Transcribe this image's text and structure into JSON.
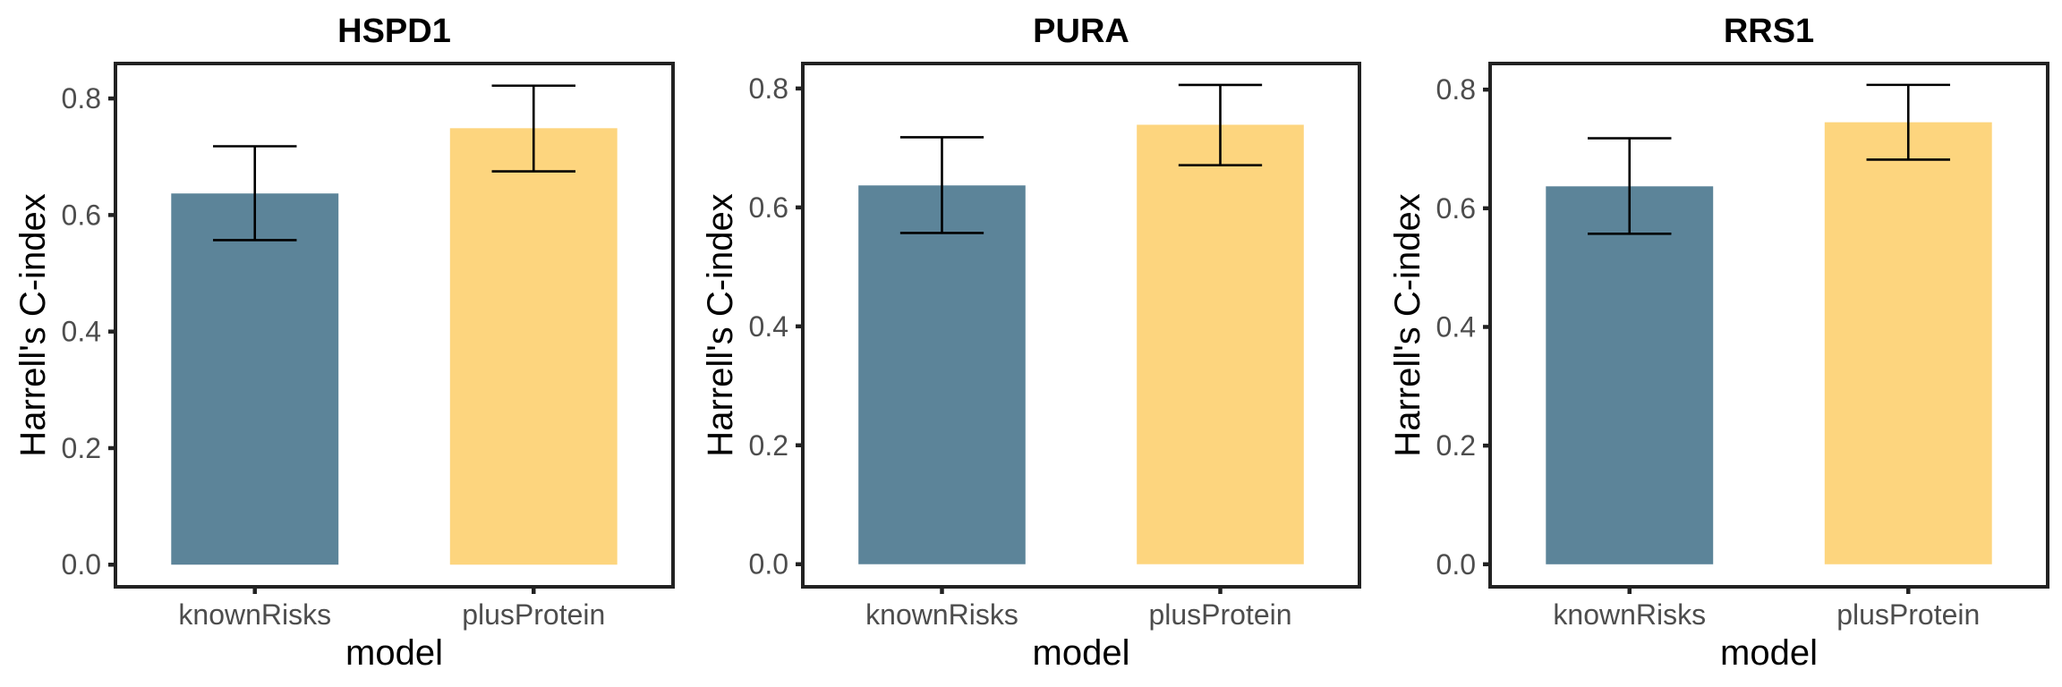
{
  "chart_data": [
    {
      "type": "bar",
      "title": "HSPD1",
      "xlabel": "model",
      "ylabel": "Harrell's C-index",
      "categories": [
        "knownRisks",
        "plusProtein"
      ],
      "values": [
        0.637,
        0.749
      ],
      "error_low": [
        0.557,
        0.675
      ],
      "error_high": [
        0.718,
        0.822
      ],
      "colors": [
        "#5c8499",
        "#fdd57e"
      ],
      "ylim": [
        -0.038,
        0.86
      ],
      "yticks": [
        0.0,
        0.2,
        0.4,
        0.6,
        0.8
      ],
      "ytick_labels": [
        "0.0",
        "0.2",
        "0.4",
        "0.6",
        "0.8"
      ],
      "grid": false,
      "legend": "none"
    },
    {
      "type": "bar",
      "title": "PURA",
      "xlabel": "model",
      "ylabel": "Harrell's C-index",
      "categories": [
        "knownRisks",
        "plusProtein"
      ],
      "values": [
        0.637,
        0.739
      ],
      "error_low": [
        0.557,
        0.671
      ],
      "error_high": [
        0.718,
        0.806
      ],
      "colors": [
        "#5c8499",
        "#fdd57e"
      ],
      "ylim": [
        -0.038,
        0.842
      ],
      "yticks": [
        0.0,
        0.2,
        0.4,
        0.6,
        0.8
      ],
      "ytick_labels": [
        "0.0",
        "0.2",
        "0.4",
        "0.6",
        "0.8"
      ],
      "grid": false,
      "legend": "none"
    },
    {
      "type": "bar",
      "title": "RRS1",
      "xlabel": "model",
      "ylabel": "Harrell's C-index",
      "categories": [
        "knownRisks",
        "plusProtein"
      ],
      "values": [
        0.637,
        0.745
      ],
      "error_low": [
        0.557,
        0.682
      ],
      "error_high": [
        0.718,
        0.808
      ],
      "colors": [
        "#5c8499",
        "#fdd57e"
      ],
      "ylim": [
        -0.038,
        0.844
      ],
      "yticks": [
        0.0,
        0.2,
        0.4,
        0.6,
        0.8
      ],
      "ytick_labels": [
        "0.0",
        "0.2",
        "0.4",
        "0.6",
        "0.8"
      ],
      "grid": false,
      "legend": "none"
    }
  ]
}
